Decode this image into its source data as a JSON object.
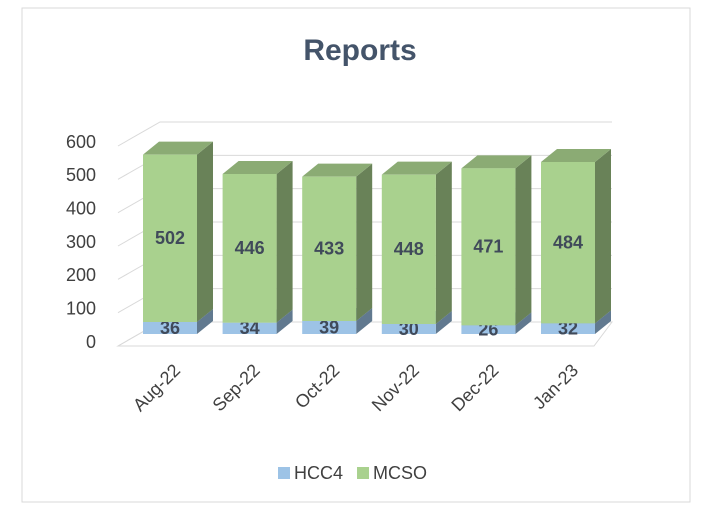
{
  "chart_data": {
    "type": "bar3d_stacked",
    "title": "Reports",
    "categories": [
      "Aug-22",
      "Sep-22",
      "Oct-22",
      "Nov-22",
      "Dec-22",
      "Jan-23"
    ],
    "series": [
      {
        "name": "HCC4",
        "color": "#9dc3e6",
        "values": [
          36,
          34,
          39,
          30,
          26,
          32
        ]
      },
      {
        "name": "MCSO",
        "color": "#a9d18e",
        "values": [
          502,
          446,
          433,
          448,
          471,
          484
        ]
      }
    ],
    "ylim": [
      0,
      600
    ],
    "yticks": [
      0,
      100,
      200,
      300,
      400,
      500,
      600
    ],
    "grid": true,
    "legend": "bottom"
  }
}
